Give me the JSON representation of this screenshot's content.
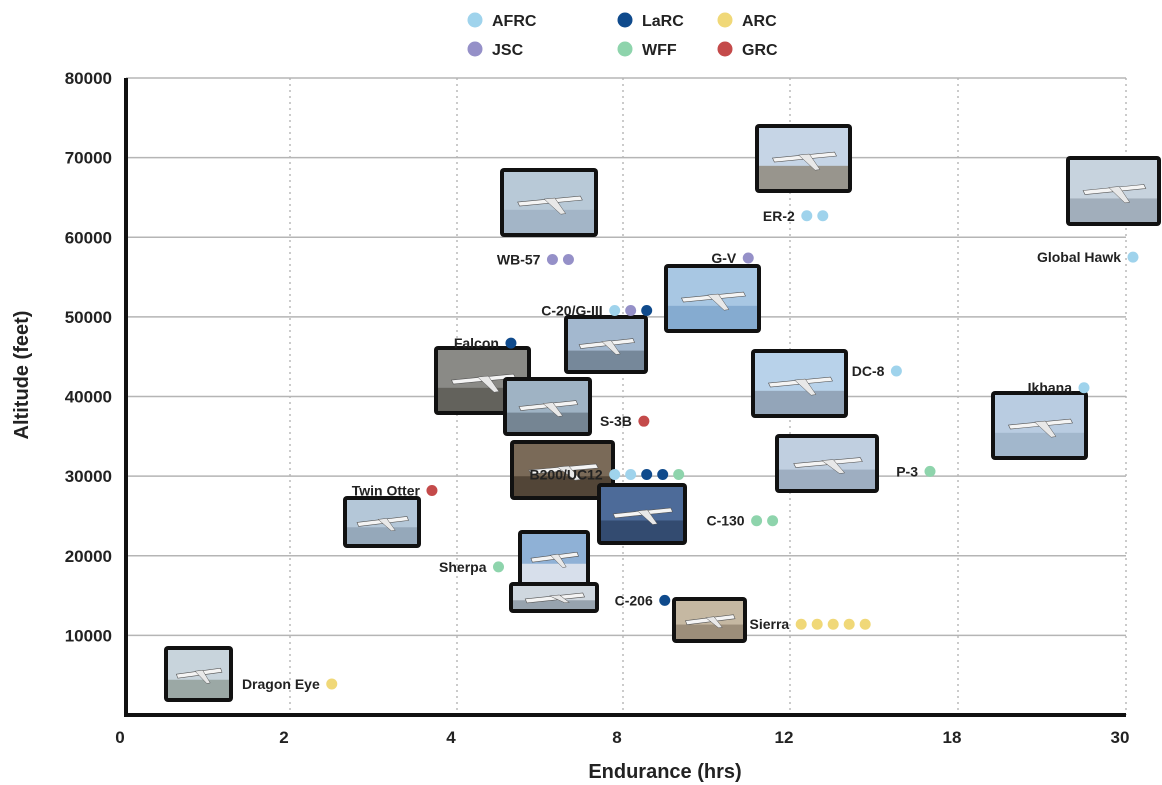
{
  "chart_data": {
    "type": "scatter",
    "xlabel": "Endurance (hrs)",
    "ylabel": "Altitude (feet)",
    "x_tick_labels": [
      "0",
      "2",
      "4",
      "8",
      "12",
      "18",
      "30"
    ],
    "y_ticks": [
      10000,
      20000,
      30000,
      40000,
      50000,
      60000,
      70000,
      80000
    ],
    "y_tick_labels": [
      "10000",
      "20000",
      "30000",
      "40000",
      "50000",
      "60000",
      "70000",
      "80000"
    ],
    "ylim": [
      0,
      80000
    ],
    "grid": true,
    "legend": {
      "placement": "top-center",
      "entries": [
        {
          "key": "AFRC",
          "label": "AFRC",
          "color": "#9fd3ec"
        },
        {
          "key": "LaRC",
          "label": "LaRC",
          "color": "#0f4a8c"
        },
        {
          "key": "ARC",
          "label": "ARC",
          "color": "#f0d878"
        },
        {
          "key": "JSC",
          "label": "JSC",
          "color": "#9590c8"
        },
        {
          "key": "WFF",
          "label": "WFF",
          "color": "#8ed4ac"
        },
        {
          "key": "GRC",
          "label": "GRC",
          "color": "#c44a4a"
        }
      ]
    },
    "aircraft": [
      {
        "name": "Global Hawk",
        "x": 30.5,
        "y": 57500,
        "centers": [
          "AFRC"
        ],
        "photo": "global-hawk-photo"
      },
      {
        "name": "ER-2",
        "x": 12.6,
        "y": 62700,
        "centers": [
          "AFRC",
          "AFRC"
        ],
        "photo": "er-2-photo"
      },
      {
        "name": "WB-57",
        "x": 6.3,
        "y": 57200,
        "centers": [
          "JSC",
          "JSC"
        ],
        "photo": "wb-57-photo"
      },
      {
        "name": "G-V",
        "x": 11.0,
        "y": 57400,
        "centers": [
          "JSC"
        ],
        "photo": "g-v-photo"
      },
      {
        "name": "C-20/G-III",
        "x": 7.8,
        "y": 50800,
        "centers": [
          "AFRC",
          "JSC",
          "LaRC"
        ],
        "photo": "c-20-photo"
      },
      {
        "name": "Falcon",
        "x": 5.3,
        "y": 46700,
        "centers": [
          "LaRC"
        ],
        "photo": "falcon-photo"
      },
      {
        "name": "DC-8",
        "x": 15.8,
        "y": 43200,
        "centers": [
          "AFRC"
        ],
        "photo": "dc-8-photo"
      },
      {
        "name": "Ikhana",
        "x": 27.0,
        "y": 41100,
        "centers": [
          "AFRC"
        ],
        "photo": "ikhana-photo"
      },
      {
        "name": "S-3B",
        "x": 8.5,
        "y": 36900,
        "centers": [
          "GRC"
        ],
        "photo": "s-3b-photo"
      },
      {
        "name": "B200/UC12",
        "x": 7.8,
        "y": 30200,
        "centers": [
          "AFRC",
          "AFRC",
          "LaRC",
          "LaRC",
          "WFF"
        ],
        "photo": "b200-photo"
      },
      {
        "name": "P-3",
        "x": 17.0,
        "y": 30600,
        "centers": [
          "WFF"
        ],
        "photo": "p-3-photo"
      },
      {
        "name": "Twin Otter",
        "x": 3.7,
        "y": 28200,
        "centers": [
          "GRC"
        ],
        "photo": "twin-otter-photo"
      },
      {
        "name": "C-130",
        "x": 11.2,
        "y": 24400,
        "centers": [
          "WFF",
          "WFF"
        ],
        "photo": "c-130-photo"
      },
      {
        "name": "Sherpa",
        "x": 5.0,
        "y": 18600,
        "centers": [
          "WFF"
        ],
        "photo": "sherpa-photo"
      },
      {
        "name": "C-206",
        "x": 9.0,
        "y": 14400,
        "centers": [
          "LaRC"
        ],
        "photo": "c-206-photo"
      },
      {
        "name": "Sierra",
        "x": 12.4,
        "y": 11400,
        "centers": [
          "ARC",
          "ARC",
          "ARC",
          "ARC",
          "ARC"
        ],
        "photo": "sierra-photo"
      },
      {
        "name": "Dragon Eye",
        "x": 2.5,
        "y": 3900,
        "centers": [
          "ARC"
        ],
        "photo": "dragon-eye-photo"
      }
    ]
  }
}
